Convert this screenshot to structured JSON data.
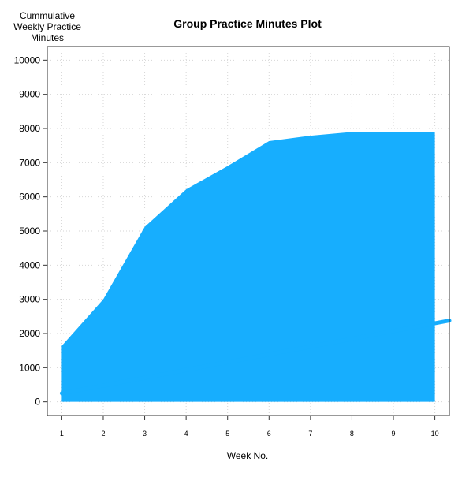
{
  "chart_data": {
    "type": "area",
    "title": "Group Practice Minutes Plot",
    "xlabel": "Week No.",
    "ylabel": "Cummulative\nWeekly Practice\nMinutes",
    "x": [
      1,
      2,
      3,
      4,
      5,
      6,
      7,
      8,
      9,
      10
    ],
    "xlim": [
      0.65,
      10.35
    ],
    "ylim": [
      -400,
      10400
    ],
    "y_ticks": [
      0,
      1000,
      2000,
      3000,
      4000,
      5000,
      6000,
      7000,
      8000,
      9000,
      10000
    ],
    "x_ticks": [
      1,
      2,
      3,
      4,
      5,
      6,
      7,
      8,
      9,
      10
    ],
    "grid": true,
    "legend": "none",
    "series": [
      {
        "kind": "area",
        "values": [
          1640,
          3000,
          5120,
          6220,
          6900,
          7630,
          7790,
          7900,
          7900,
          7900
        ],
        "color": "#17aefe"
      },
      {
        "kind": "trend-line",
        "x": [
          1,
          10.35
        ],
        "values": [
          250,
          2380
        ],
        "color": "#17aefe"
      }
    ]
  }
}
